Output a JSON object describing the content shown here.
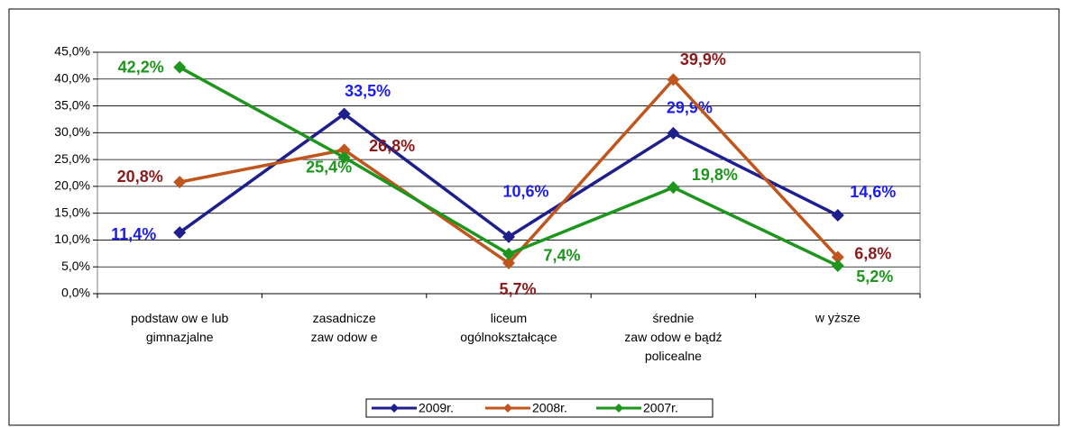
{
  "chart_data": {
    "type": "line",
    "categories": [
      "podstaw ow e lub\ngimnazjalne",
      "zasadnicze\nzaw odow e",
      "liceum\nogólnokształcące",
      "średnie\nzaw odow e bądź\npolicealne",
      "w yższe"
    ],
    "series": [
      {
        "name": "2009r.",
        "color": "#1f1f8c",
        "label_color": "#1e1ee6",
        "values": [
          11.4,
          33.5,
          10.6,
          29.9,
          14.6
        ],
        "value_labels": [
          "11,4%",
          "33,5%",
          "10,6%",
          "29,9%",
          "14,6%"
        ]
      },
      {
        "name": "2008r.",
        "color": "#c0561e",
        "label_color": "#8c1a1a",
        "values": [
          20.8,
          26.8,
          5.7,
          39.9,
          6.8
        ],
        "value_labels": [
          "20,8%",
          "26,8%",
          "5,7%",
          "39,9%",
          "6,8%"
        ]
      },
      {
        "name": "2007r.",
        "color": "#1e961e",
        "label_color": "#1e961e",
        "values": [
          42.2,
          25.4,
          7.4,
          19.8,
          5.2
        ],
        "value_labels": [
          "42,2%",
          "25,4%",
          "7,4%",
          "19,8%",
          "5,2%"
        ]
      }
    ],
    "ylim": [
      0,
      45
    ],
    "yticks": [
      {
        "value": 0,
        "label": "0,0%"
      },
      {
        "value": 5,
        "label": "5,0%"
      },
      {
        "value": 10,
        "label": "10,0%"
      },
      {
        "value": 15,
        "label": "15,0%"
      },
      {
        "value": 20,
        "label": "20,0%"
      },
      {
        "value": 25,
        "label": "25,0%"
      },
      {
        "value": 30,
        "label": "30,0%"
      },
      {
        "value": 35,
        "label": "35,0%"
      },
      {
        "value": 40,
        "label": "40,0%"
      },
      {
        "value": 45,
        "label": "45,0%"
      }
    ],
    "grid": true,
    "legend": "bottom"
  }
}
